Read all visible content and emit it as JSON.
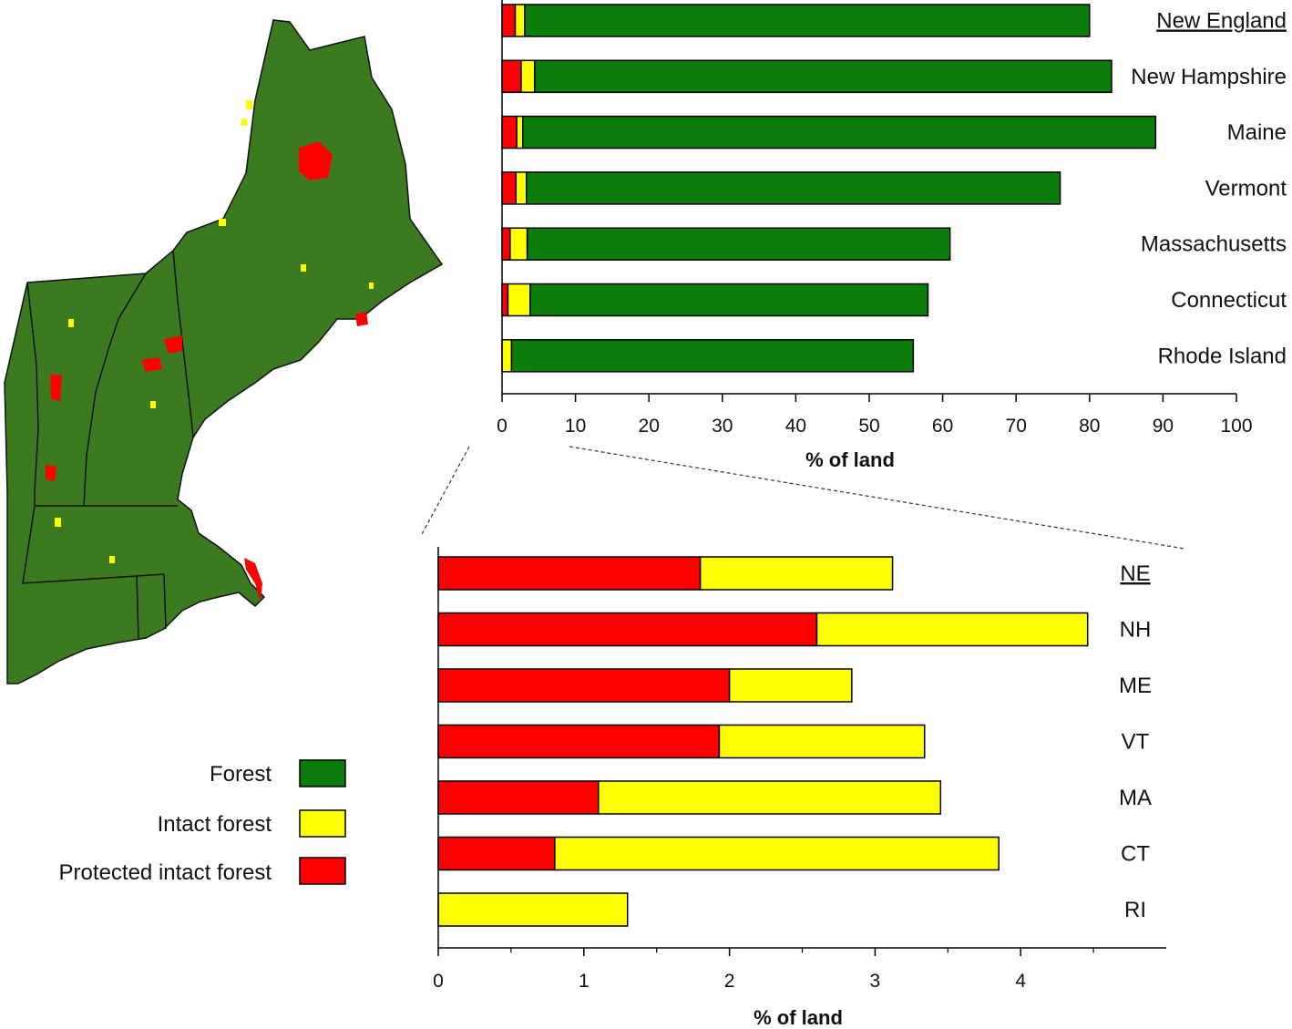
{
  "colors": {
    "forest": "#0a7d0a",
    "intact": "#ffff00",
    "protected": "#ff0000",
    "bar_edge": "#000000",
    "map_land": "#3b7a1f"
  },
  "map": {
    "icon": "new-england-forest-map"
  },
  "legend": {
    "items": [
      {
        "label": "Forest",
        "color_key": "forest"
      },
      {
        "label": "Intact forest",
        "color_key": "intact"
      },
      {
        "label": "Protected intact forest",
        "color_key": "protected"
      }
    ]
  },
  "chart_data": [
    {
      "type": "bar",
      "orientation": "horizontal",
      "stacked": true,
      "categories": [
        "New England",
        "New Hampshire",
        "Maine",
        "Vermont",
        "Massachusetts",
        "Connecticut",
        "Rhode Island"
      ],
      "underlined_category": "New England",
      "series": [
        {
          "name": "Protected intact forest",
          "values": [
            1.8,
            2.6,
            2.0,
            1.9,
            1.1,
            0.8,
            0.0
          ]
        },
        {
          "name": "Intact forest",
          "values": [
            1.3,
            1.85,
            0.83,
            1.42,
            2.33,
            3.03,
            1.3
          ]
        },
        {
          "name": "Forest",
          "values": [
            76.9,
            78.55,
            86.17,
            72.68,
            57.57,
            54.17,
            54.7
          ]
        }
      ],
      "totals": [
        80,
        83,
        89,
        76,
        61,
        58,
        56
      ],
      "xlabel": "% of land",
      "xlim": [
        0,
        100
      ],
      "xticks": [
        0,
        10,
        20,
        30,
        40,
        50,
        60,
        70,
        80,
        90,
        100
      ],
      "grid": false
    },
    {
      "type": "bar",
      "orientation": "horizontal",
      "stacked": true,
      "categories": [
        "NE",
        "NH",
        "ME",
        "VT",
        "MA",
        "CT",
        "RI"
      ],
      "underlined_category": "NE",
      "series": [
        {
          "name": "Protected intact forest",
          "values": [
            1.8,
            2.6,
            2.0,
            1.93,
            1.1,
            0.8,
            0.0
          ]
        },
        {
          "name": "Intact forest",
          "values": [
            1.32,
            1.86,
            0.84,
            1.41,
            2.35,
            3.05,
            1.3
          ]
        }
      ],
      "xlabel": "% of land",
      "xlim": [
        0,
        5
      ],
      "xticks": [
        0,
        1,
        2,
        3,
        4
      ],
      "grid": false
    }
  ]
}
